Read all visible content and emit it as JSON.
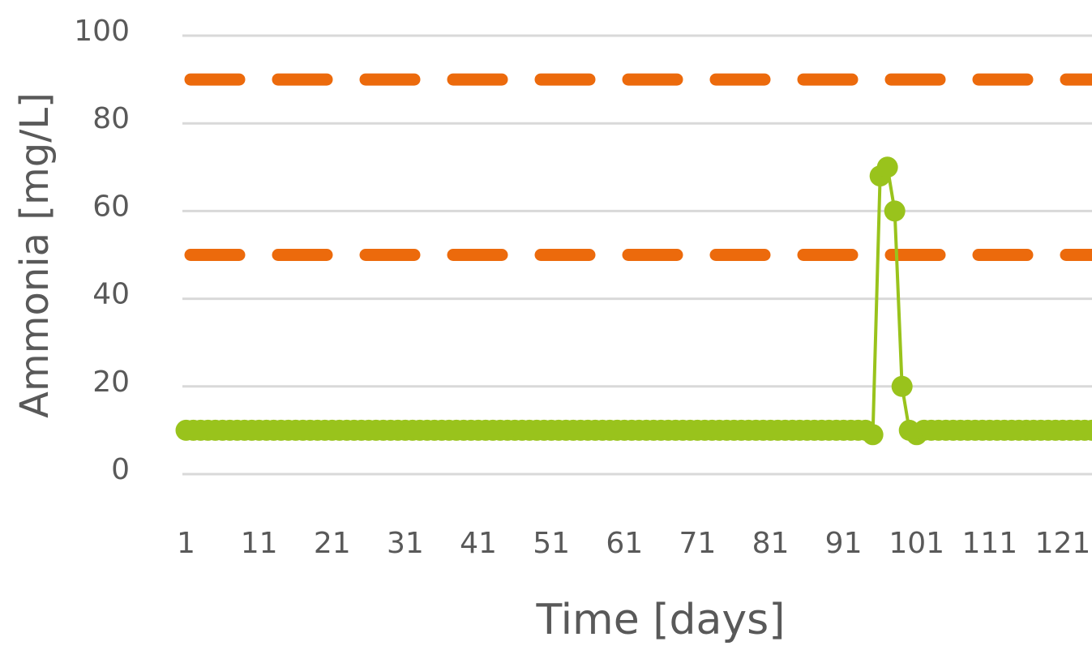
{
  "chart_data": {
    "type": "line",
    "xlabel": "Time [days]",
    "ylabel": "Ammonia [mg/L]",
    "x": [
      1,
      2,
      3,
      4,
      5,
      6,
      7,
      8,
      9,
      10,
      11,
      12,
      13,
      14,
      15,
      16,
      17,
      18,
      19,
      20,
      21,
      22,
      23,
      24,
      25,
      26,
      27,
      28,
      29,
      30,
      31,
      32,
      33,
      34,
      35,
      36,
      37,
      38,
      39,
      40,
      41,
      42,
      43,
      44,
      45,
      46,
      47,
      48,
      49,
      50,
      51,
      52,
      53,
      54,
      55,
      56,
      57,
      58,
      59,
      60,
      61,
      62,
      63,
      64,
      65,
      66,
      67,
      68,
      69,
      70,
      71,
      72,
      73,
      74,
      75,
      76,
      77,
      78,
      79,
      80,
      81,
      82,
      83,
      84,
      85,
      86,
      87,
      88,
      89,
      90,
      91,
      92,
      93,
      94,
      95,
      96,
      97,
      98,
      99,
      100,
      101,
      102,
      103,
      104,
      105,
      106,
      107,
      108,
      109,
      110,
      111,
      112,
      113,
      114,
      115,
      116,
      117,
      118,
      119,
      120,
      121,
      122,
      123,
      124,
      125
    ],
    "series": [
      {
        "color": "#99c31c",
        "values": [
          10,
          10,
          10,
          10,
          10,
          10,
          10,
          10,
          10,
          10,
          10,
          10,
          10,
          10,
          10,
          10,
          10,
          10,
          10,
          10,
          10,
          10,
          10,
          10,
          10,
          10,
          10,
          10,
          10,
          10,
          10,
          10,
          10,
          10,
          10,
          10,
          10,
          10,
          10,
          10,
          10,
          10,
          10,
          10,
          10,
          10,
          10,
          10,
          10,
          10,
          10,
          10,
          10,
          10,
          10,
          10,
          10,
          10,
          10,
          10,
          10,
          10,
          10,
          10,
          10,
          10,
          10,
          10,
          10,
          10,
          10,
          10,
          10,
          10,
          10,
          10,
          10,
          10,
          10,
          10,
          10,
          10,
          10,
          10,
          10,
          10,
          10,
          10,
          10,
          10,
          10,
          10,
          10,
          10,
          9,
          68,
          70,
          60,
          20,
          10,
          9,
          10,
          10,
          10,
          10,
          10,
          10,
          10,
          10,
          10,
          10,
          10,
          10,
          10,
          10,
          10,
          10,
          10,
          10,
          10,
          10,
          10,
          10,
          10,
          10
        ]
      }
    ],
    "reference_lines": {
      "color": "#ec6a0c",
      "values": [
        90,
        50
      ]
    },
    "xlim": [
      0.5,
      125
    ],
    "xticks": [
      1,
      11,
      21,
      31,
      41,
      51,
      61,
      71,
      81,
      91,
      101,
      111,
      121
    ],
    "ylim": [
      0,
      100
    ],
    "yticks": [
      0,
      20,
      40,
      60,
      80,
      100
    ],
    "grid": true
  }
}
